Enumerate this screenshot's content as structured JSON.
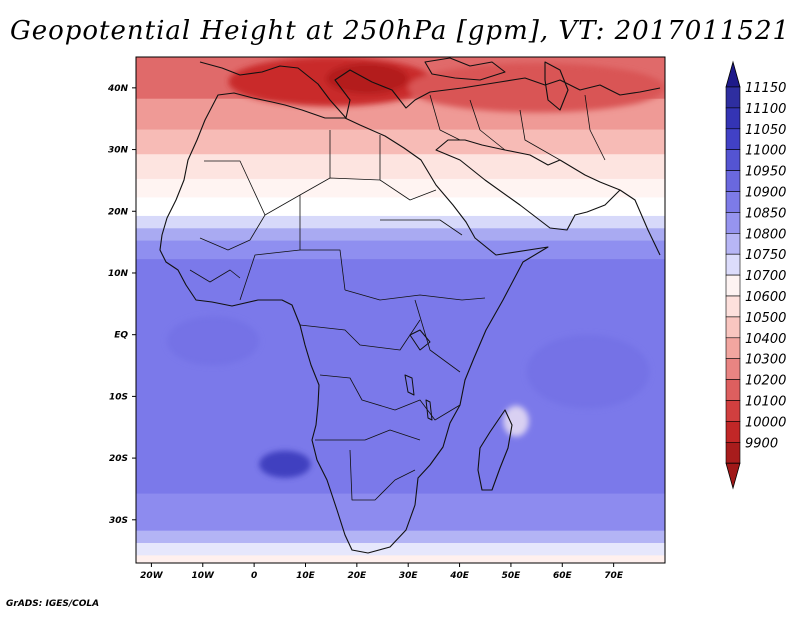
{
  "title": "Geopotential Height at 250hPa [gpm], VT: 2017011521",
  "credit": "GrADS: IGES/COLA",
  "map": {
    "lon_range": [
      -23,
      80
    ],
    "lat_range": [
      -37,
      45
    ],
    "x_ticks": [
      {
        "lon": -20,
        "label": "20W"
      },
      {
        "lon": -10,
        "label": "10W"
      },
      {
        "lon": 0,
        "label": "0"
      },
      {
        "lon": 10,
        "label": "10E"
      },
      {
        "lon": 20,
        "label": "20E"
      },
      {
        "lon": 30,
        "label": "30E"
      },
      {
        "lon": 40,
        "label": "40E"
      },
      {
        "lon": 50,
        "label": "50E"
      },
      {
        "lon": 60,
        "label": "60E"
      },
      {
        "lon": 70,
        "label": "70E"
      }
    ],
    "y_ticks": [
      {
        "lat": 40,
        "label": "40N"
      },
      {
        "lat": 30,
        "label": "30N"
      },
      {
        "lat": 20,
        "label": "20N"
      },
      {
        "lat": 10,
        "label": "10N"
      },
      {
        "lat": 0,
        "label": "EQ"
      },
      {
        "lat": -10,
        "label": "10S"
      },
      {
        "lat": -20,
        "label": "20S"
      },
      {
        "lat": -30,
        "label": "30S"
      }
    ],
    "color_bands": [
      {
        "lat_from": 45,
        "lat_to": 38,
        "color": "#e06a6a"
      },
      {
        "lat_from": 38,
        "lat_to": 33,
        "color": "#ef9a96"
      },
      {
        "lat_from": 33,
        "lat_to": 29,
        "color": "#f7bbb6"
      },
      {
        "lat_from": 29,
        "lat_to": 25,
        "color": "#fde4e0"
      },
      {
        "lat_from": 25,
        "lat_to": 22,
        "color": "#fff4f2"
      },
      {
        "lat_from": 22,
        "lat_to": 19,
        "color": "#ffffff"
      },
      {
        "lat_from": 19,
        "lat_to": 17,
        "color": "#d7d9fa"
      },
      {
        "lat_from": 17,
        "lat_to": 15,
        "color": "#a9aaf2"
      },
      {
        "lat_from": 15,
        "lat_to": 12,
        "color": "#8f8ff0"
      },
      {
        "lat_from": 12,
        "lat_to": -26,
        "color": "#7b79ea"
      },
      {
        "lat_from": -26,
        "lat_to": -32,
        "color": "#8d8bef"
      },
      {
        "lat_from": -32,
        "lat_to": -34,
        "color": "#b3b4f5"
      },
      {
        "lat_from": -34,
        "lat_to": -36,
        "color": "#e6e7fc"
      },
      {
        "lat_from": -36,
        "lat_to": -37,
        "color": "#fff0ee"
      }
    ],
    "features": [
      {
        "name": "mediterranean-high",
        "lon": 15,
        "lat": 41,
        "rlon": 20,
        "rlat": 4,
        "color": "#c92a2a"
      },
      {
        "name": "aegean-core",
        "lon": 22,
        "lat": 41.5,
        "rlon": 8,
        "rlat": 2.5,
        "color": "#b31d1d"
      },
      {
        "name": "arabian-red",
        "lon": 55,
        "lat": 40,
        "rlon": 25,
        "rlat": 4,
        "color": "#d95555"
      },
      {
        "name": "atlantic-low",
        "lon": -8,
        "lat": -1,
        "rlon": 9,
        "rlat": 4,
        "color": "#7472e6"
      },
      {
        "name": "indian-ocean-low",
        "lon": 65,
        "lat": -6,
        "rlon": 12,
        "rlat": 6,
        "color": "#7472e6"
      },
      {
        "name": "madagascar-warm",
        "lon": 51,
        "lat": -14,
        "rlon": 2.5,
        "rlat": 2.5,
        "color": "#d9d0f2"
      },
      {
        "name": "atlantic-min",
        "lon": 6,
        "lat": -21,
        "rlon": 5,
        "rlat": 2.2,
        "color": "#3f3fc0"
      }
    ]
  },
  "legend": {
    "levels": [
      "11150",
      "11100",
      "11050",
      "11000",
      "10950",
      "10900",
      "10850",
      "10800",
      "10750",
      "10700",
      "10600",
      "10500",
      "10400",
      "10300",
      "10200",
      "10100",
      "10000",
      "9900"
    ],
    "colors": [
      "#2e2ea0",
      "#3434b4",
      "#4141c6",
      "#5454d2",
      "#6a68de",
      "#7d7be8",
      "#9694ef",
      "#b7b6f5",
      "#dcdcfb",
      "#fdf3f2",
      "#fde0dc",
      "#f9c6c0",
      "#f2a6a0",
      "#e98482",
      "#dd5f5f",
      "#d13f3f",
      "#c12727",
      "#a81c1c"
    ],
    "top_cap_color": "#1e1a8a",
    "bottom_cap_color": "#a01818"
  }
}
